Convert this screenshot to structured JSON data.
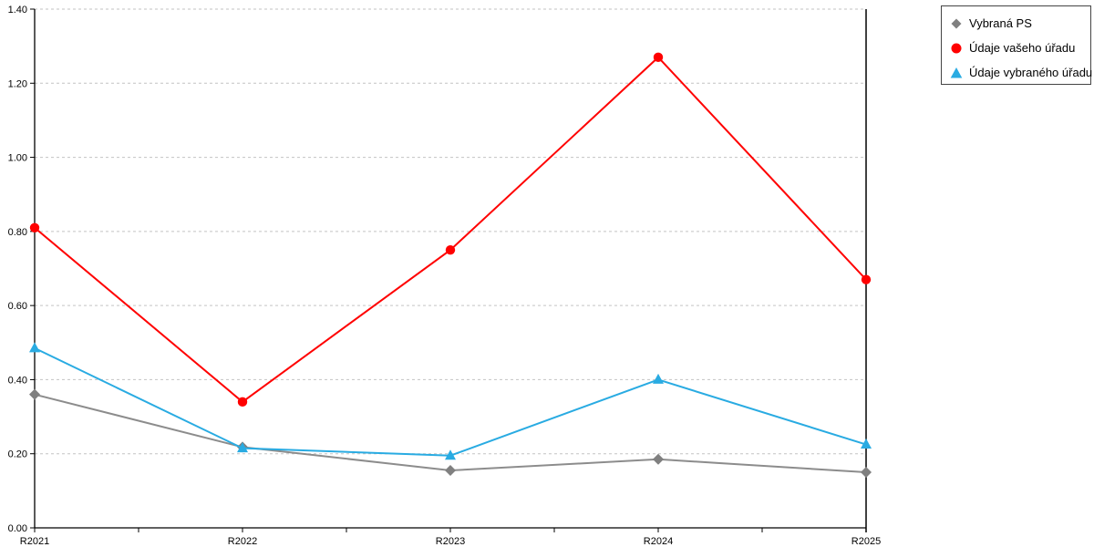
{
  "chart_data": {
    "type": "line",
    "categories": [
      "R2021",
      "R2022",
      "R2023",
      "R2024",
      "R2025"
    ],
    "series": [
      {
        "name": "Vybraná PS",
        "marker": "diamond",
        "color": "#808080",
        "line_color": "#8c8c8c",
        "values": [
          0.36,
          0.218,
          0.155,
          0.185,
          0.15
        ]
      },
      {
        "name": "Údaje vašeho úřadu",
        "marker": "circle",
        "color": "#ff0000",
        "line_color": "#ff0000",
        "values": [
          0.81,
          0.34,
          0.75,
          1.27,
          0.67
        ]
      },
      {
        "name": "Údaje vybraného úřadu",
        "marker": "triangle",
        "color": "#29abe2",
        "line_color": "#29abe2",
        "values": [
          0.485,
          0.215,
          0.195,
          0.4,
          0.225
        ]
      }
    ],
    "title": "",
    "xlabel": "",
    "ylabel": "",
    "ylim": [
      0,
      1.4
    ],
    "ytick_step": 0.2,
    "ytick_labels": [
      "0.00",
      "0.20",
      "0.40",
      "0.60",
      "0.80",
      "1.00",
      "1.20",
      "1.40"
    ],
    "xtick_minor_between_categories": true,
    "grid": "horizontal-dashed",
    "legend_position": "top-right",
    "colors": {
      "gridline": "#c3c3c3",
      "axis": "#000000",
      "tick_label": "#000000",
      "legend_border": "#444444",
      "background": "#ffffff"
    }
  }
}
